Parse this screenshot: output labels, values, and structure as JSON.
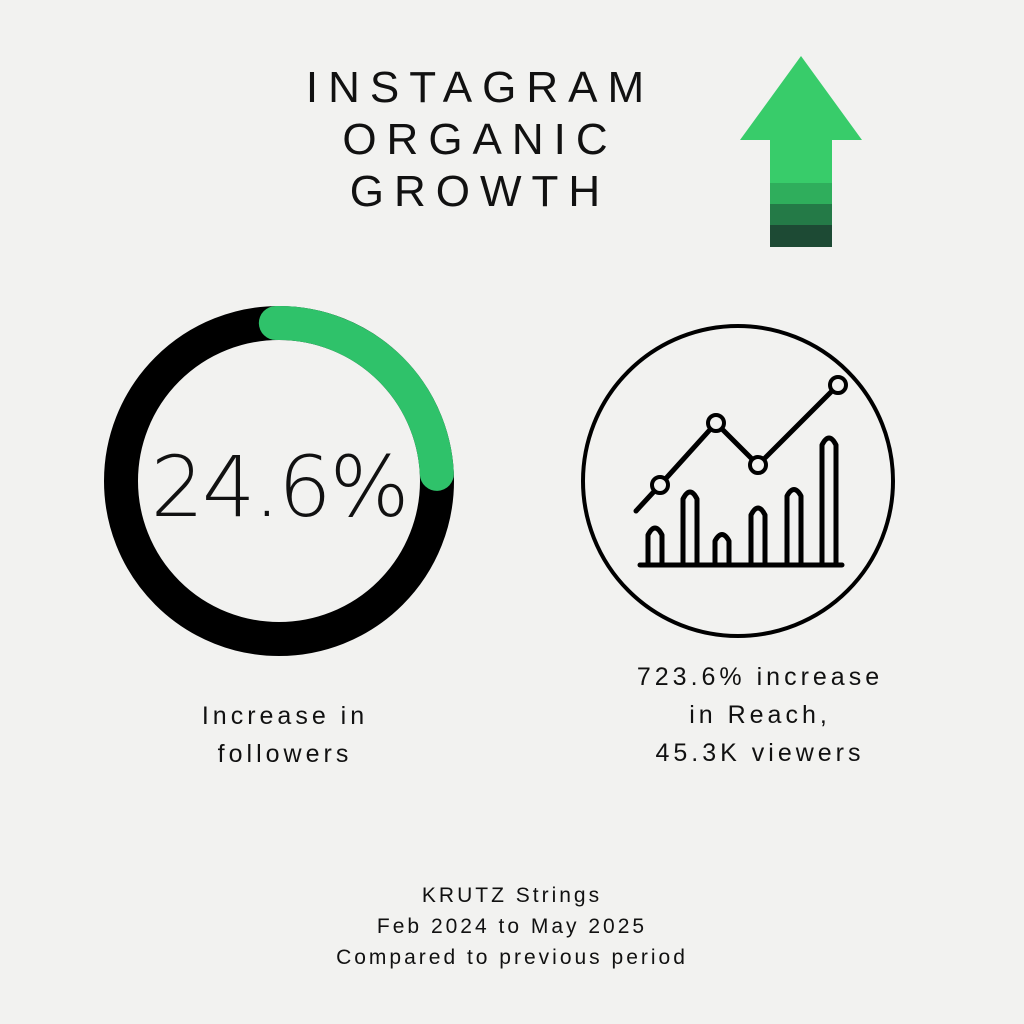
{
  "title": {
    "line1": "INSTAGRAM",
    "line2": "ORGANIC",
    "line3": "GROWTH"
  },
  "followers": {
    "value_label": "24.6%",
    "fraction": 0.246,
    "caption_line1": "Increase in",
    "caption_line2": "followers"
  },
  "reach": {
    "caption_line1": "723.6% increase",
    "caption_line2": "in Reach,",
    "caption_line3": "45.3K viewers"
  },
  "footer": {
    "line1": "KRUTZ Strings",
    "line2": "Feb 2024 to May 2025",
    "line3": "Compared to previous period"
  },
  "colors": {
    "accent_green": "#2fc26a",
    "arrow_green": "#38cc6a",
    "ring_dark": "#000000",
    "background": "#f2f2f0"
  },
  "icons": {
    "growth_arrow": "up-arrow-icon",
    "trend_chart": "line-bar-chart-icon"
  }
}
